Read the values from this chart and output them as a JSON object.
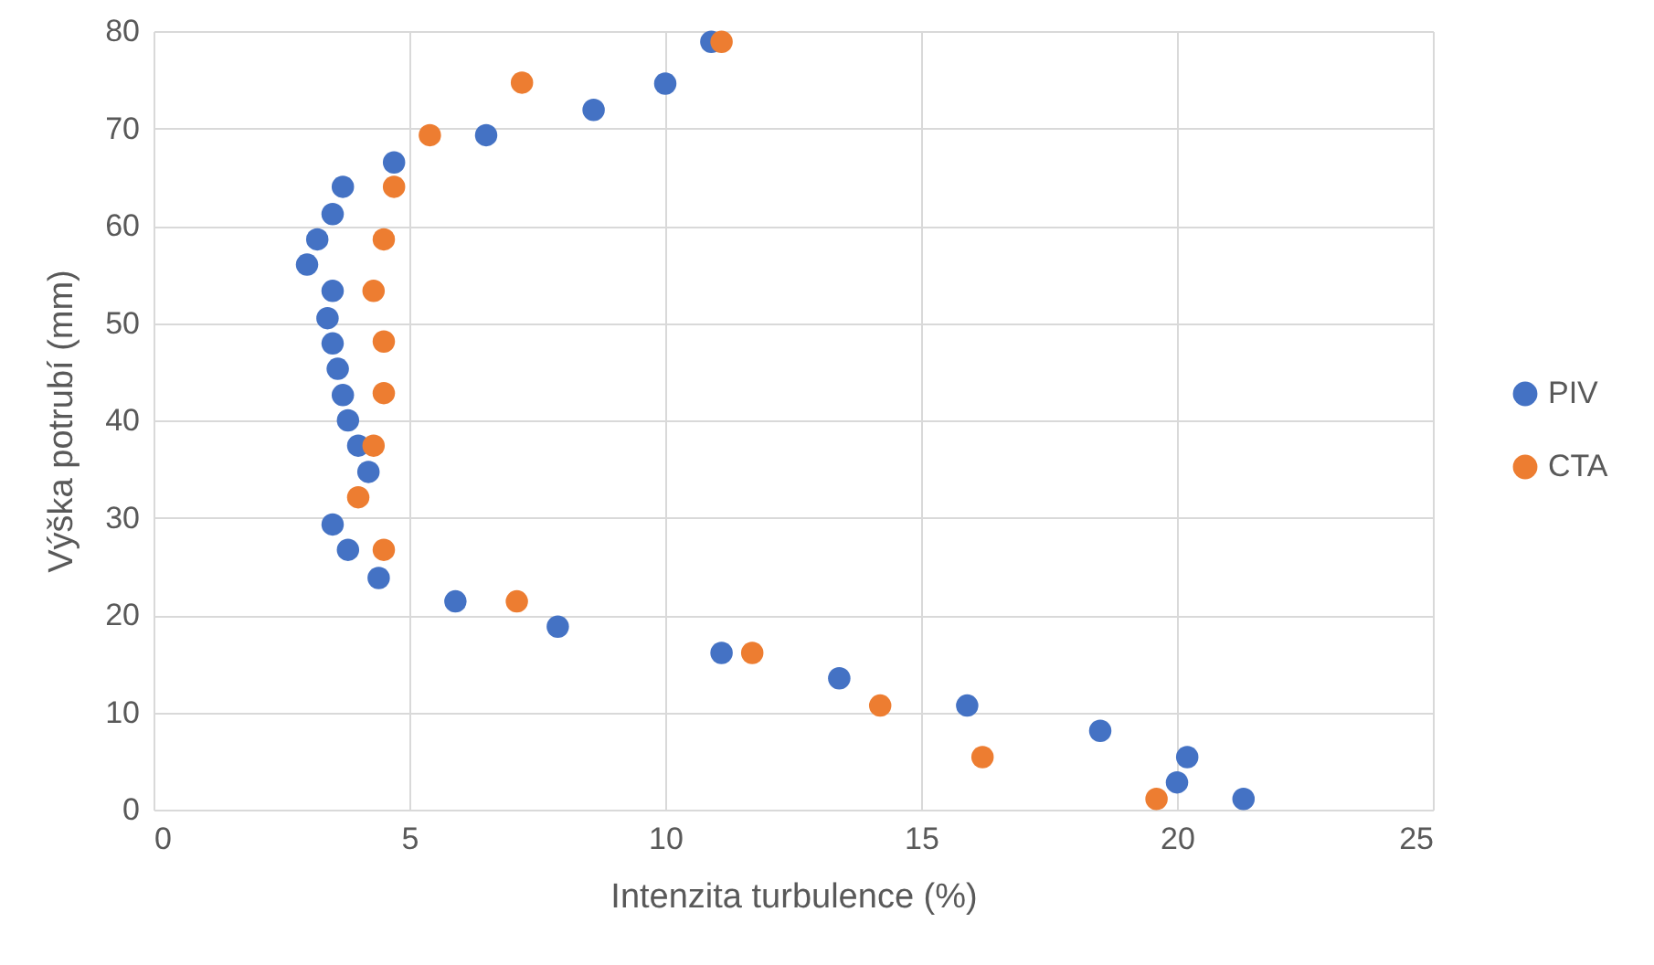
{
  "chart_data": {
    "type": "scatter",
    "xlabel": "Intenzita turbulence (%)",
    "ylabel": "Výška potrubí (mm)",
    "xlim": [
      0,
      25
    ],
    "xticks": [
      0,
      5,
      10,
      15,
      20,
      25
    ],
    "ylim": [
      0,
      80
    ],
    "yticks": [
      0,
      10,
      20,
      30,
      40,
      50,
      60,
      70,
      80
    ],
    "grid": true,
    "legend": "right",
    "marker": "circle",
    "series": [
      {
        "name": "PIV",
        "color": "#4472c4",
        "x": [
          10.9,
          10.0,
          8.6,
          6.5,
          4.7,
          3.7,
          3.5,
          3.2,
          3.0,
          3.5,
          3.4,
          3.5,
          3.6,
          3.7,
          3.8,
          4.0,
          4.2,
          3.5,
          3.8,
          4.4,
          5.9,
          7.9,
          11.1,
          13.4,
          15.9,
          18.5,
          20.2,
          20.0,
          21.3
        ],
        "values": [
          78.9,
          74.6,
          71.9,
          69.3,
          66.5,
          64.0,
          61.2,
          58.6,
          56.0,
          53.3,
          50.5,
          47.9,
          45.3,
          42.6,
          40.0,
          37.4,
          34.7,
          29.3,
          26.7,
          23.8,
          21.4,
          18.8,
          16.1,
          13.5,
          10.7,
          8.1,
          5.4,
          2.8,
          1.1
        ]
      },
      {
        "name": "CTA",
        "color": "#ed7d31",
        "x": [
          11.1,
          7.2,
          5.4,
          4.7,
          4.5,
          4.3,
          4.5,
          4.5,
          4.3,
          4.0,
          4.5,
          7.1,
          11.7,
          14.2,
          16.2,
          19.6
        ],
        "values": [
          78.9,
          74.7,
          69.3,
          64.0,
          58.6,
          53.3,
          48.1,
          42.8,
          37.4,
          32.1,
          26.7,
          21.4,
          16.1,
          10.7,
          5.4,
          1.1
        ]
      }
    ]
  }
}
